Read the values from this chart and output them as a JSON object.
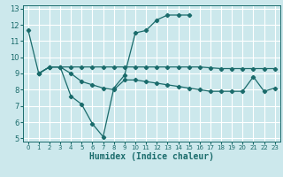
{
  "xlabel": "Humidex (Indice chaleur)",
  "bg_color": "#cce8ec",
  "grid_color": "#ffffff",
  "line_color": "#1a6b6b",
  "xlim": [
    -0.5,
    23.5
  ],
  "ylim": [
    4.8,
    13.2
  ],
  "xticks": [
    0,
    1,
    2,
    3,
    4,
    5,
    6,
    7,
    8,
    9,
    10,
    11,
    12,
    13,
    14,
    15,
    16,
    17,
    18,
    19,
    20,
    21,
    22,
    23
  ],
  "yticks": [
    5,
    6,
    7,
    8,
    9,
    10,
    11,
    12,
    13
  ],
  "line1_x": [
    0,
    1,
    2,
    3,
    4,
    5,
    6,
    7,
    8,
    9,
    10,
    11,
    12,
    13,
    14,
    15
  ],
  "line1_y": [
    11.7,
    9.0,
    9.4,
    9.4,
    7.6,
    7.1,
    5.9,
    5.1,
    8.1,
    8.9,
    11.5,
    11.65,
    12.3,
    12.6,
    12.6,
    12.6
  ],
  "line2_x": [
    1,
    2,
    3,
    4,
    5,
    6,
    7,
    8,
    9,
    10,
    11,
    12,
    13,
    14,
    15,
    16,
    17,
    18,
    19,
    20,
    21,
    22,
    23
  ],
  "line2_y": [
    9.0,
    9.4,
    9.4,
    9.4,
    9.4,
    9.4,
    9.4,
    9.4,
    9.4,
    9.4,
    9.4,
    9.4,
    9.4,
    9.4,
    9.4,
    9.4,
    9.35,
    9.3,
    9.3,
    9.3,
    9.3,
    9.3,
    9.3
  ],
  "line3_x": [
    1,
    2,
    3,
    4,
    5,
    6,
    7,
    8,
    9,
    10,
    11,
    12,
    13,
    14,
    15,
    16,
    17,
    18,
    19,
    20,
    21,
    22,
    23
  ],
  "line3_y": [
    9.0,
    9.4,
    9.4,
    9.0,
    8.5,
    8.3,
    8.1,
    8.0,
    8.6,
    8.6,
    8.5,
    8.4,
    8.3,
    8.2,
    8.1,
    8.0,
    7.9,
    7.9,
    7.9,
    7.9,
    8.8,
    7.9,
    8.1
  ]
}
